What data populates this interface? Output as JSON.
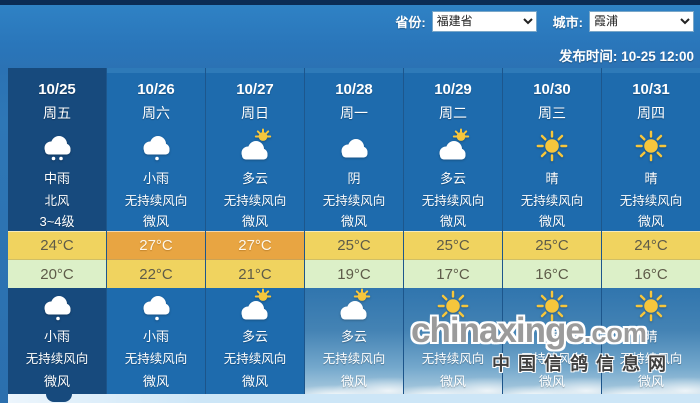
{
  "header": {
    "province_label": "省份:",
    "province_value": "福建省",
    "city_label": "城市:",
    "city_value": "霞浦",
    "publish_time": "发布时间: 10-25 12:00"
  },
  "colors": {
    "topbar": "#0b2c55",
    "col_bg": "#1e6bad",
    "sel_bg": "#174a7d",
    "temp_yellow": "#f0d35f",
    "temp_orange": "#e8a542",
    "temp_green": "#dcf0c8"
  },
  "watermark": {
    "line1": "chinaxinge",
    "line1_suffix": ".com",
    "line2": "中国信鸽信息网"
  },
  "forecast": {
    "days": [
      {
        "date": "10/25",
        "weekday": "周五",
        "selected": true,
        "day": {
          "icon": "rain-medium",
          "text": "中雨",
          "wind": "北风",
          "level": "3~4级"
        },
        "high": "24°C",
        "high_variant": "t-yellow",
        "low": "20°C",
        "low_variant": "t-green",
        "night": {
          "icon": "rain-light",
          "text": "小雨",
          "wind": "无持续风向",
          "level": "微风"
        }
      },
      {
        "date": "10/26",
        "weekday": "周六",
        "selected": false,
        "day": {
          "icon": "rain-light",
          "text": "小雨",
          "wind": "无持续风向",
          "level": "微风"
        },
        "high": "27°C",
        "high_variant": "t-orange",
        "low": "22°C",
        "low_variant": "t-yellow",
        "night": {
          "icon": "rain-light",
          "text": "小雨",
          "wind": "无持续风向",
          "level": "微风"
        }
      },
      {
        "date": "10/27",
        "weekday": "周日",
        "selected": false,
        "day": {
          "icon": "cloudy-sun",
          "text": "多云",
          "wind": "无持续风向",
          "level": "微风"
        },
        "high": "27°C",
        "high_variant": "t-orange",
        "low": "21°C",
        "low_variant": "t-yellow",
        "night": {
          "icon": "cloudy-sun",
          "text": "多云",
          "wind": "无持续风向",
          "level": "微风"
        }
      },
      {
        "date": "10/28",
        "weekday": "周一",
        "selected": false,
        "day": {
          "icon": "overcast",
          "text": "阴",
          "wind": "无持续风向",
          "level": "微风"
        },
        "high": "25°C",
        "high_variant": "t-yellow",
        "low": "19°C",
        "low_variant": "t-green",
        "night": {
          "icon": "cloudy-sun",
          "text": "多云",
          "wind": "无持续风向",
          "level": "微风"
        }
      },
      {
        "date": "10/29",
        "weekday": "周二",
        "selected": false,
        "day": {
          "icon": "cloudy-sun",
          "text": "多云",
          "wind": "无持续风向",
          "level": "微风"
        },
        "high": "25°C",
        "high_variant": "t-yellow",
        "low": "17°C",
        "low_variant": "t-green",
        "night": {
          "icon": "sunny",
          "text": "晴",
          "wind": "无持续风向",
          "level": "微风"
        }
      },
      {
        "date": "10/30",
        "weekday": "周三",
        "selected": false,
        "day": {
          "icon": "sunny",
          "text": "晴",
          "wind": "无持续风向",
          "level": "微风"
        },
        "high": "25°C",
        "high_variant": "t-yellow",
        "low": "16°C",
        "low_variant": "t-green",
        "night": {
          "icon": "sunny",
          "text": "晴",
          "wind": "无持续风向",
          "level": "微风"
        }
      },
      {
        "date": "10/31",
        "weekday": "周四",
        "selected": false,
        "day": {
          "icon": "sunny",
          "text": "晴",
          "wind": "无持续风向",
          "level": "微风"
        },
        "high": "24°C",
        "high_variant": "t-yellow",
        "low": "16°C",
        "low_variant": "t-green",
        "night": {
          "icon": "sunny",
          "text": "晴",
          "wind": "无持续风向",
          "level": "微风"
        }
      }
    ]
  }
}
